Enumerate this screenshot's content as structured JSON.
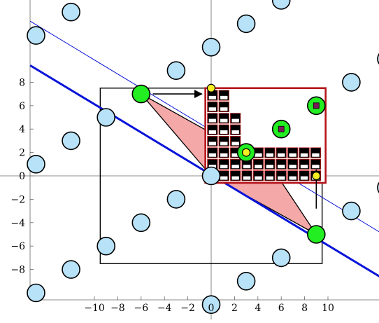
{
  "chart_data": {
    "type": "scatter",
    "title": "",
    "xlabel": "",
    "ylabel": "",
    "xlim": [
      -15.5,
      14.7
    ],
    "ylim": [
      -10.6,
      14.8
    ],
    "x_ticks": [
      {
        "v": -10,
        "label": "−10"
      },
      {
        "v": -8,
        "label": "−8"
      },
      {
        "v": -6,
        "label": "−6"
      },
      {
        "v": -4,
        "label": "−4"
      },
      {
        "v": -2,
        "label": "−2"
      },
      {
        "v": 0,
        "label": "0"
      },
      {
        "v": 2,
        "label": "2"
      },
      {
        "v": 4,
        "label": "4"
      },
      {
        "v": 6,
        "label": "6"
      },
      {
        "v": 8,
        "label": "8"
      },
      {
        "v": 10,
        "label": "10"
      }
    ],
    "y_ticks": [
      {
        "v": 8,
        "label": "8"
      },
      {
        "v": 6,
        "label": "6"
      },
      {
        "v": 4,
        "label": "4"
      },
      {
        "v": 2,
        "label": "2"
      },
      {
        "v": 0,
        "label": "0"
      },
      {
        "v": -2,
        "label": "−2"
      },
      {
        "v": -4,
        "label": "−4"
      },
      {
        "v": -6,
        "label": "−6"
      },
      {
        "v": -8,
        "label": "−8"
      }
    ],
    "lattice_points": [
      [
        -12,
        14
      ],
      [
        -15,
        12
      ],
      [
        3,
        13
      ],
      [
        6,
        15
      ],
      [
        0,
        11
      ],
      [
        -3,
        9
      ],
      [
        12,
        8
      ],
      [
        15,
        10
      ],
      [
        -9,
        5
      ],
      [
        -12,
        3
      ],
      [
        -15,
        1
      ],
      [
        0,
        0
      ],
      [
        -3,
        -2
      ],
      [
        -6,
        -4
      ],
      [
        12,
        -3
      ],
      [
        15,
        -1
      ],
      [
        -9,
        -6
      ],
      [
        -12,
        -8
      ],
      [
        6,
        -7
      ],
      [
        3,
        -9
      ],
      [
        0,
        -11
      ],
      [
        -15,
        -10
      ]
    ],
    "basis_points": [
      [
        -6,
        7
      ],
      [
        9,
        -5
      ]
    ],
    "highlight_points": [
      [
        3,
        2
      ],
      [
        6,
        4
      ],
      [
        9,
        6
      ]
    ],
    "yellow_points": [
      [
        0,
        7.5
      ],
      [
        9,
        0
      ]
    ],
    "fundamental_triangles": [
      [
        [
          0,
          0
        ],
        [
          -6,
          7
        ],
        [
          3,
          2
        ]
      ],
      [
        [
          0,
          0
        ],
        [
          9,
          -5
        ],
        [
          6,
          -0.5
        ]
      ]
    ],
    "lines": [
      {
        "style": "thick",
        "points": [
          [
            -15.5,
            9.44
          ],
          [
            14.7,
            -8.77
          ]
        ]
      },
      {
        "style": "thin",
        "points": [
          [
            -15.5,
            13.22
          ],
          [
            14.7,
            -4.97
          ]
        ]
      }
    ],
    "box": {
      "x": [
        -9.5,
        9.5
      ],
      "y": [
        -7.5,
        7.5
      ]
    },
    "inset_box": {
      "x": [
        -0.5,
        9.8
      ],
      "y": [
        -0.6,
        7.5
      ]
    },
    "arrows": [
      {
        "from": [
          -5,
          7
        ],
        "to": [
          -0.8,
          7
        ]
      },
      {
        "from": [
          9,
          -2.8
        ],
        "to": [
          9,
          0.5
        ]
      }
    ],
    "colors": {
      "lattice_fill": "#b8e2f8",
      "basis_fill": "#22ee22",
      "triangle_fill": "#f4a8a8",
      "yellow_fill": "#f6f022",
      "inner_fill": "#7a1a5a",
      "line": "#0a14d8",
      "inset_border": "#b4141a"
    }
  }
}
